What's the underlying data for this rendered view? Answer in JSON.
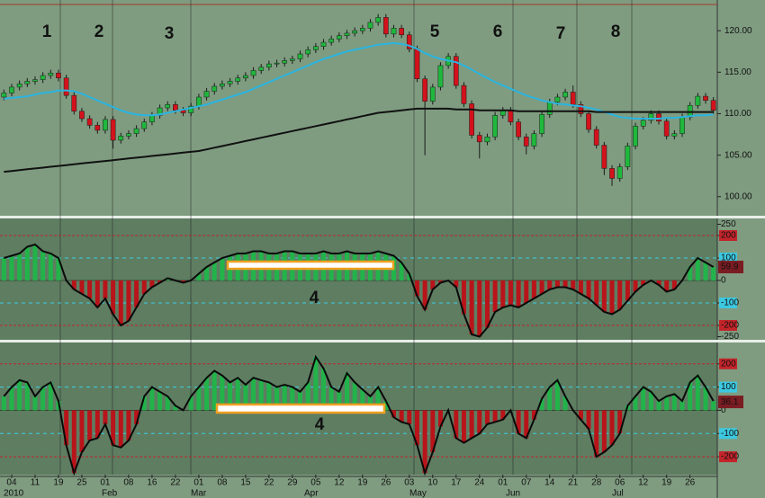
{
  "chart_data": [
    {
      "type": "candlestick",
      "open": [
        112.0,
        112.5,
        113.2,
        113.6,
        113.9,
        114.1,
        114.6,
        114.9,
        114.3,
        112.2,
        110.3,
        109.4,
        108.6,
        108.0,
        109.3,
        106.8,
        107.3,
        107.6,
        108.2,
        109.0,
        109.8,
        110.7,
        111.1,
        110.4,
        110.1,
        110.9,
        112.0,
        112.7,
        113.3,
        113.6,
        113.9,
        114.3,
        114.6,
        115.2,
        115.6,
        116.0,
        116.1,
        116.4,
        116.6,
        117.2,
        117.7,
        118.1,
        118.6,
        119.0,
        119.4,
        119.7,
        120.0,
        120.3,
        121.0,
        121.6,
        119.6,
        120.3,
        119.5,
        117.8,
        114.2,
        111.5,
        113.2,
        115.8,
        116.9,
        113.4,
        111.2,
        107.4,
        106.6,
        107.2,
        109.8,
        110.4,
        109.0,
        107.2,
        106.1,
        107.6,
        109.9,
        111.4,
        112.0,
        112.6,
        111.1,
        110.0,
        108.1,
        106.2,
        103.4,
        102.2,
        103.6,
        106.1,
        108.5,
        109.2,
        110.0,
        109.1,
        107.3,
        107.6,
        109.6,
        111.0,
        112.1,
        111.6
      ],
      "high": [
        112.9,
        113.6,
        114.0,
        114.3,
        114.5,
        115.0,
        115.3,
        115.3,
        114.7,
        112.6,
        110.7,
        109.8,
        109.0,
        109.7,
        109.7,
        107.7,
        108.0,
        108.6,
        109.4,
        110.2,
        111.1,
        111.5,
        111.5,
        110.8,
        111.3,
        112.4,
        113.1,
        113.7,
        114.0,
        114.3,
        114.7,
        115.0,
        115.6,
        116.0,
        116.4,
        116.5,
        116.8,
        117.0,
        117.6,
        118.1,
        118.5,
        119.0,
        119.4,
        119.8,
        120.1,
        120.4,
        120.7,
        121.4,
        122.0,
        122.0,
        120.7,
        120.7,
        119.9,
        118.2,
        114.6,
        113.6,
        116.2,
        117.3,
        117.3,
        113.8,
        111.6,
        107.8,
        107.6,
        110.2,
        110.8,
        110.8,
        109.4,
        107.6,
        108.0,
        110.3,
        111.8,
        112.4,
        113.0,
        113.4,
        111.5,
        110.4,
        108.5,
        106.6,
        103.8,
        104.0,
        106.5,
        108.9,
        109.6,
        110.4,
        110.4,
        109.5,
        108.0,
        110.0,
        111.4,
        112.5,
        112.5,
        112.0
      ],
      "low": [
        111.6,
        112.1,
        112.8,
        113.2,
        113.5,
        113.7,
        114.2,
        113.9,
        111.8,
        109.9,
        109.0,
        108.2,
        107.6,
        107.6,
        105.8,
        106.4,
        106.9,
        107.2,
        107.8,
        108.6,
        109.4,
        110.3,
        110.0,
        109.7,
        109.7,
        110.5,
        111.6,
        112.3,
        112.9,
        113.2,
        113.5,
        113.9,
        114.2,
        114.8,
        115.2,
        115.6,
        115.7,
        116.0,
        116.2,
        116.8,
        117.3,
        117.7,
        118.2,
        118.6,
        119.0,
        119.3,
        119.6,
        119.9,
        120.6,
        119.2,
        119.2,
        119.1,
        117.4,
        113.8,
        105.0,
        111.1,
        112.8,
        115.4,
        113.0,
        110.8,
        107.0,
        104.6,
        106.2,
        106.8,
        109.4,
        108.6,
        106.8,
        105.1,
        105.7,
        107.2,
        109.5,
        111.0,
        111.6,
        110.7,
        109.6,
        107.7,
        105.8,
        102.6,
        101.3,
        101.8,
        103.2,
        105.7,
        108.1,
        108.8,
        108.7,
        106.9,
        106.9,
        107.2,
        109.2,
        110.6,
        111.2,
        110.0
      ],
      "close": [
        112.5,
        113.2,
        113.6,
        113.9,
        114.1,
        114.6,
        114.9,
        114.3,
        112.2,
        110.3,
        109.4,
        108.6,
        108.0,
        109.3,
        106.8,
        107.3,
        107.6,
        108.2,
        109.0,
        109.8,
        110.7,
        111.1,
        110.4,
        110.1,
        110.9,
        112.0,
        112.7,
        113.3,
        113.6,
        113.9,
        114.3,
        114.6,
        115.2,
        115.6,
        116.0,
        116.1,
        116.4,
        116.6,
        117.2,
        117.7,
        118.1,
        118.6,
        119.0,
        119.4,
        119.7,
        120.0,
        120.3,
        121.0,
        121.6,
        119.6,
        120.3,
        119.5,
        117.8,
        114.2,
        111.5,
        113.2,
        115.8,
        116.9,
        113.4,
        111.2,
        107.4,
        106.6,
        107.2,
        109.8,
        110.4,
        109.0,
        107.2,
        106.1,
        107.6,
        109.9,
        111.4,
        112.0,
        112.6,
        111.1,
        110.0,
        108.1,
        106.2,
        103.4,
        102.2,
        103.6,
        106.1,
        108.5,
        109.2,
        110.0,
        109.1,
        107.3,
        107.6,
        109.6,
        111.0,
        112.1,
        111.6,
        110.4
      ],
      "up_color": "#1fb83c",
      "down_color": "#d3121c",
      "lines": [
        {
          "color": "#2ab4e0",
          "values": [
            111.8,
            111.9,
            112.0,
            112.1,
            112.3,
            112.5,
            112.6,
            112.8,
            112.8,
            112.7,
            112.4,
            112.0,
            111.6,
            111.2,
            110.8,
            110.4,
            110.1,
            109.9,
            109.8,
            109.8,
            109.9,
            110.1,
            110.3,
            110.5,
            110.7,
            110.9,
            111.1,
            111.4,
            111.7,
            112.0,
            112.3,
            112.6,
            113.0,
            113.4,
            113.8,
            114.2,
            114.6,
            115.0,
            115.4,
            115.8,
            116.2,
            116.6,
            116.9,
            117.2,
            117.5,
            117.7,
            117.9,
            118.1,
            118.3,
            118.4,
            118.5,
            118.4,
            118.2,
            117.8,
            117.3,
            116.9,
            116.6,
            116.4,
            116.2,
            115.8,
            115.3,
            114.8,
            114.3,
            113.8,
            113.4,
            113.0,
            112.6,
            112.2,
            111.9,
            111.6,
            111.4,
            111.2,
            111.1,
            111.0,
            110.9,
            110.7,
            110.5,
            110.2,
            109.9,
            109.6,
            109.5,
            109.4,
            109.4,
            109.4,
            109.4,
            109.5,
            109.5,
            109.6,
            109.7,
            109.8,
            109.8,
            109.9
          ]
        },
        {
          "color": "#111111",
          "values": [
            103.0,
            103.1,
            103.2,
            103.3,
            103.4,
            103.5,
            103.6,
            103.7,
            103.8,
            103.9,
            104.0,
            104.1,
            104.2,
            104.3,
            104.4,
            104.5,
            104.6,
            104.7,
            104.8,
            104.9,
            105.0,
            105.1,
            105.2,
            105.3,
            105.4,
            105.5,
            105.7,
            105.9,
            106.1,
            106.3,
            106.5,
            106.7,
            106.9,
            107.1,
            107.3,
            107.5,
            107.7,
            107.9,
            108.1,
            108.3,
            108.5,
            108.7,
            108.9,
            109.1,
            109.3,
            109.5,
            109.7,
            109.9,
            110.1,
            110.2,
            110.3,
            110.4,
            110.5,
            110.6,
            110.6,
            110.6,
            110.6,
            110.6,
            110.5,
            110.5,
            110.5,
            110.4,
            110.4,
            110.4,
            110.4,
            110.4,
            110.3,
            110.3,
            110.3,
            110.3,
            110.3,
            110.3,
            110.3,
            110.3,
            110.3,
            110.3,
            110.2,
            110.2,
            110.2,
            110.2,
            110.2,
            110.2,
            110.2,
            110.2,
            110.2,
            110.2,
            110.2,
            110.2,
            110.2,
            110.2,
            110.2,
            110.2
          ]
        }
      ],
      "ylim": [
        97.7,
        123.7
      ],
      "yticks": [
        {
          "value": 120,
          "label": "120.00"
        },
        {
          "value": 115,
          "label": "115.00"
        },
        {
          "value": 110,
          "label": "110.00"
        },
        {
          "value": 105,
          "label": "105.00"
        },
        {
          "value": 100,
          "label": "100.00"
        }
      ],
      "annotations": [
        "1",
        "2",
        "3",
        "5",
        "6",
        "7",
        "8"
      ]
    },
    {
      "type": "histogram",
      "values": [
        100,
        110,
        120,
        150,
        160,
        130,
        120,
        100,
        0,
        -40,
        -60,
        -80,
        -120,
        -80,
        -150,
        -200,
        -180,
        -120,
        -60,
        -30,
        -10,
        10,
        0,
        -10,
        0,
        30,
        60,
        80,
        100,
        110,
        120,
        120,
        130,
        130,
        120,
        120,
        130,
        130,
        120,
        120,
        120,
        130,
        120,
        120,
        130,
        120,
        120,
        120,
        130,
        120,
        110,
        80,
        30,
        -70,
        -130,
        -40,
        -10,
        0,
        -30,
        -150,
        -240,
        -250,
        -210,
        -140,
        -120,
        -110,
        -120,
        -100,
        -80,
        -60,
        -40,
        -30,
        -30,
        -40,
        -60,
        -80,
        -110,
        -140,
        -150,
        -130,
        -90,
        -50,
        -20,
        0,
        -20,
        -50,
        -40,
        0,
        60,
        100,
        80,
        60
      ],
      "positive_color": "#22b34a",
      "negative_color": "#b8141a",
      "line_color": "#0a0a0a",
      "current_value": 59.9,
      "ylim": [
        -264,
        276
      ],
      "yticks": [
        250,
        200,
        100,
        0,
        -100,
        -200,
        -250
      ],
      "annotations": [
        "4"
      ]
    },
    {
      "type": "histogram",
      "values": [
        60,
        100,
        130,
        120,
        60,
        100,
        120,
        40,
        -150,
        -270,
        -180,
        -130,
        -120,
        -60,
        -150,
        -160,
        -130,
        -60,
        60,
        100,
        80,
        60,
        20,
        0,
        60,
        100,
        140,
        170,
        150,
        120,
        140,
        110,
        140,
        130,
        120,
        100,
        110,
        100,
        80,
        120,
        230,
        180,
        100,
        80,
        160,
        120,
        90,
        60,
        100,
        40,
        -30,
        -50,
        -60,
        -150,
        -270,
        -180,
        -70,
        0,
        -120,
        -140,
        -120,
        -100,
        -60,
        -50,
        -40,
        0,
        -100,
        -120,
        -40,
        50,
        100,
        130,
        60,
        0,
        -40,
        -80,
        -200,
        -180,
        -150,
        -100,
        20,
        60,
        100,
        80,
        40,
        60,
        70,
        40,
        120,
        150,
        100,
        40
      ],
      "positive_color": "#22b34a",
      "negative_color": "#b8141a",
      "line_color": "#0a0a0a",
      "current_value": 36.1,
      "ylim": [
        -277,
        292
      ],
      "yticks": [
        200,
        100,
        0,
        -100,
        -200
      ],
      "annotations": [
        "4"
      ],
      "categories": [
        null,
        "04",
        null,
        null,
        "11",
        null,
        null,
        "19",
        null,
        null,
        "25",
        null,
        null,
        "01",
        null,
        null,
        "08",
        null,
        null,
        "16",
        null,
        null,
        "22",
        null,
        null,
        "01",
        null,
        null,
        "08",
        null,
        null,
        "15",
        null,
        null,
        "22",
        null,
        null,
        "29",
        null,
        null,
        "05",
        null,
        null,
        "12",
        null,
        null,
        "19",
        null,
        null,
        "26",
        null,
        null,
        "03",
        null,
        null,
        "10",
        null,
        null,
        "17",
        null,
        null,
        "24",
        null,
        null,
        "01",
        null,
        null,
        "07",
        null,
        null,
        "14",
        null,
        null,
        "21",
        null,
        null,
        "28",
        null,
        null,
        "06",
        null,
        null,
        "12",
        null,
        null,
        "19",
        null,
        null,
        "26",
        null,
        null,
        null
      ],
      "month_labels": [
        "2010",
        "Feb",
        "Mar",
        "Apr",
        "May",
        "Jun",
        "Jul"
      ]
    }
  ]
}
